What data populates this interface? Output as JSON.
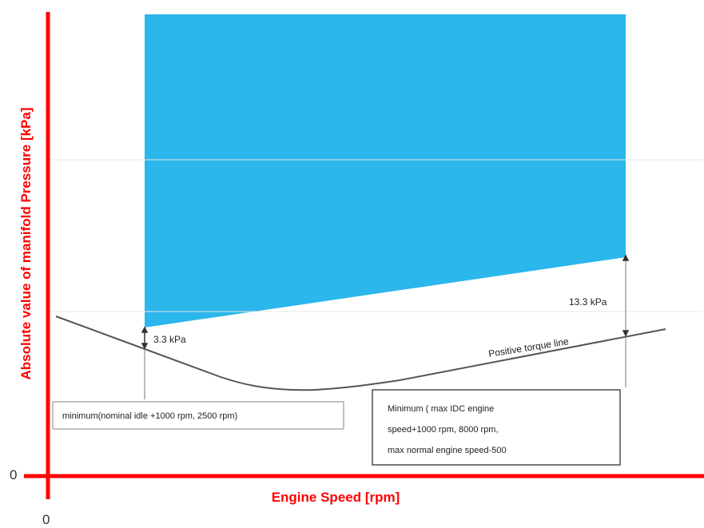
{
  "chart_data": {
    "type": "area",
    "xlabel": "Engine Speed [rpm]",
    "ylabel": "Absolute value of  manifold Pressure [kPa]",
    "x_origin_label": "0",
    "y_origin_label": "0",
    "shaded_region": {
      "color": "#2bb6ec",
      "lower_left_label": "3.3 kPa",
      "lower_right_label": "13.3 kPa"
    },
    "curve": {
      "label": "Positive torque line",
      "color": "#555555"
    },
    "left_bound_label": "minimum(nominal idle +1000 rpm, 2500 rpm)",
    "right_bound_label_lines": [
      "Minimum ( max IDC engine",
      "speed+1000 rpm, 8000 rpm,",
      "max normal engine speed-500"
    ],
    "axis_color": "#ff0000"
  }
}
